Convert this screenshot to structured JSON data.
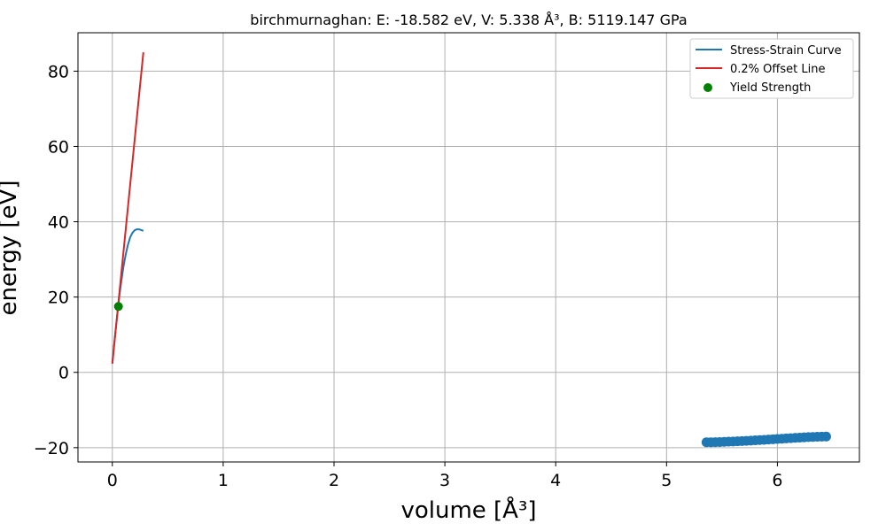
{
  "chart_data": {
    "type": "line",
    "title": "birchmurnaghan: E: -18.582 eV, V: 5.338 Å³, B: 5119.147 GPa",
    "xlabel": "volume [Å³]",
    "ylabel": "energy [eV]",
    "xlim": [
      -0.31,
      6.74
    ],
    "ylim": [
      -23.8,
      90.2
    ],
    "xticks": [
      0,
      1,
      2,
      3,
      4,
      5,
      6
    ],
    "xtick_labels": [
      "0",
      "1",
      "2",
      "3",
      "4",
      "5",
      "6"
    ],
    "yticks": [
      -20,
      0,
      20,
      40,
      60,
      80
    ],
    "ytick_labels": [
      "−20",
      "0",
      "20",
      "40",
      "60",
      "80"
    ],
    "grid": true,
    "legend_position": "top-right",
    "colors": {
      "curve": "#1f77b4",
      "offset": "#d62728",
      "yield": "#008000",
      "points": "#1f77b4"
    },
    "series": [
      {
        "name": "Stress-Strain Curve",
        "kind": "line",
        "x": [
          0.0,
          0.02,
          0.04,
          0.06,
          0.08,
          0.1,
          0.12,
          0.14,
          0.16,
          0.18,
          0.2,
          0.22,
          0.24,
          0.26,
          0.28
        ],
        "y": [
          2.5,
          8.5,
          14.0,
          19.5,
          24.0,
          28.0,
          31.2,
          33.8,
          35.8,
          37.0,
          37.7,
          38.0,
          38.0,
          37.8,
          37.6
        ]
      },
      {
        "name": "0.2% Offset Line",
        "kind": "line",
        "x": [
          0.0,
          0.28
        ],
        "y": [
          2.3,
          85.0
        ]
      },
      {
        "name": "Yield Strength",
        "kind": "point",
        "x": [
          0.055
        ],
        "y": [
          17.5
        ]
      },
      {
        "kind": "scatter",
        "x": [
          5.36,
          5.4,
          5.44,
          5.48,
          5.52,
          5.56,
          5.6,
          5.64,
          5.68,
          5.72,
          5.76,
          5.8,
          5.84,
          5.88,
          5.92,
          5.96,
          6.0,
          6.04,
          6.08,
          6.12,
          6.16,
          6.2,
          6.24,
          6.28,
          6.32,
          6.36,
          6.4,
          6.44
        ],
        "y": [
          -18.58,
          -18.58,
          -18.55,
          -18.5,
          -18.45,
          -18.4,
          -18.35,
          -18.3,
          -18.24,
          -18.18,
          -18.12,
          -18.05,
          -17.98,
          -17.91,
          -17.84,
          -17.77,
          -17.7,
          -17.62,
          -17.55,
          -17.47,
          -17.4,
          -17.33,
          -17.26,
          -17.2,
          -17.15,
          -17.1,
          -17.07,
          -17.05
        ]
      }
    ]
  }
}
